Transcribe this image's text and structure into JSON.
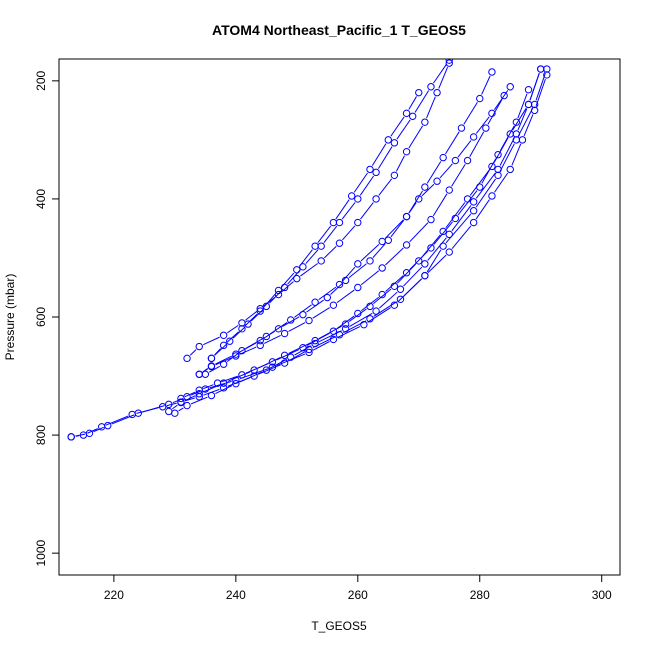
{
  "chart_data": {
    "type": "line",
    "title": "ATOM4 Northeast_Pacific_1 T_GEOS5",
    "xlabel": "T_GEOS5",
    "ylabel": "Pressure (mbar)",
    "xlim": [
      211,
      303
    ],
    "ylim": [
      1037,
      163
    ],
    "y_reversed": true,
    "grid": false,
    "legend": "none",
    "series_color": "#0000ff",
    "x_ticks": [
      "220",
      "240",
      "260",
      "280",
      "300"
    ],
    "y_ticks": [
      "200",
      "400",
      "600",
      "800",
      "1000"
    ],
    "series": [
      {
        "x": [
          213,
          216,
          219,
          224,
          229,
          232,
          235,
          240,
          246,
          252,
          256,
          261,
          266,
          271,
          274,
          279,
          283,
          286,
          289,
          291
        ],
        "y": [
          803,
          797,
          784,
          763,
          748,
          735,
          722,
          707,
          685,
          660,
          638,
          613,
          580,
          530,
          480,
          420,
          360,
          300,
          240,
          180
        ]
      },
      {
        "x": [
          213,
          215,
          218,
          223,
          228,
          231,
          234,
          238,
          243,
          248,
          252,
          257,
          262,
          267,
          271,
          275,
          279,
          282,
          285,
          287,
          289,
          291
        ],
        "y": [
          803,
          800,
          786,
          765,
          752,
          744,
          735,
          720,
          700,
          678,
          655,
          630,
          603,
          570,
          530,
          490,
          440,
          395,
          350,
          300,
          250,
          190
        ]
      },
      {
        "x": [
          230,
          232,
          236,
          240,
          245,
          249,
          253,
          258,
          263,
          267,
          271,
          275,
          279,
          283,
          286,
          288,
          290
        ],
        "y": [
          763,
          750,
          733,
          713,
          690,
          668,
          645,
          620,
          590,
          553,
          510,
          460,
          405,
          350,
          290,
          240,
          180
        ]
      },
      {
        "x": [
          229,
          231,
          234,
          238,
          243,
          248,
          253,
          258,
          262,
          266,
          270,
          274,
          278,
          282,
          285,
          288,
          290
        ],
        "y": [
          760,
          745,
          730,
          712,
          690,
          665,
          640,
          612,
          582,
          548,
          505,
          455,
          400,
          345,
          290,
          240,
          180
        ]
      },
      {
        "x": [
          231,
          234,
          237,
          241,
          246,
          251,
          256,
          260,
          264,
          268,
          272,
          276,
          280,
          283,
          286,
          288
        ],
        "y": [
          738,
          724,
          712,
          698,
          676,
          652,
          624,
          594,
          562,
          525,
          483,
          433,
          380,
          325,
          270,
          215
        ]
      },
      {
        "x": [
          234,
          236,
          240,
          244,
          248,
          252,
          256,
          260,
          264,
          268,
          272,
          275,
          278,
          281,
          284
        ],
        "y": [
          697,
          684,
          666,
          648,
          628,
          606,
          580,
          550,
          517,
          478,
          435,
          385,
          335,
          280,
          225
        ]
      },
      {
        "x": [
          234,
          236,
          240,
          244,
          247,
          251,
          255,
          258,
          262,
          265,
          268,
          270,
          273,
          276,
          279,
          282,
          285
        ],
        "y": [
          697,
          683,
          663,
          640,
          620,
          596,
          567,
          538,
          505,
          470,
          430,
          400,
          370,
          335,
          295,
          255,
          210
        ]
      },
      {
        "x": [
          235,
          238,
          241,
          245,
          249,
          253,
          257,
          260,
          264,
          268,
          271,
          274,
          277,
          280,
          282
        ],
        "y": [
          697,
          680,
          657,
          633,
          605,
          575,
          545,
          510,
          472,
          430,
          380,
          330,
          280,
          230,
          185
        ]
      },
      {
        "x": [
          232,
          234,
          238,
          241,
          244,
          247,
          250,
          254,
          257,
          260,
          263,
          266,
          268,
          271,
          273,
          275
        ],
        "y": [
          670,
          650,
          631,
          610,
          586,
          562,
          535,
          505,
          475,
          440,
          400,
          360,
          320,
          270,
          220,
          170
        ]
      },
      {
        "x": [
          236,
          238,
          241,
          244,
          247,
          250,
          253,
          256,
          259,
          262,
          265,
          268,
          270
        ],
        "y": [
          670,
          648,
          620,
          590,
          555,
          520,
          480,
          440,
          395,
          350,
          300,
          255,
          220
        ]
      },
      {
        "x": [
          236,
          239,
          242,
          245,
          248,
          251,
          254,
          257,
          260,
          263,
          266,
          269,
          272,
          275
        ],
        "y": [
          670,
          641,
          612,
          582,
          550,
          515,
          480,
          440,
          400,
          355,
          305,
          260,
          210,
          165
        ]
      }
    ]
  }
}
